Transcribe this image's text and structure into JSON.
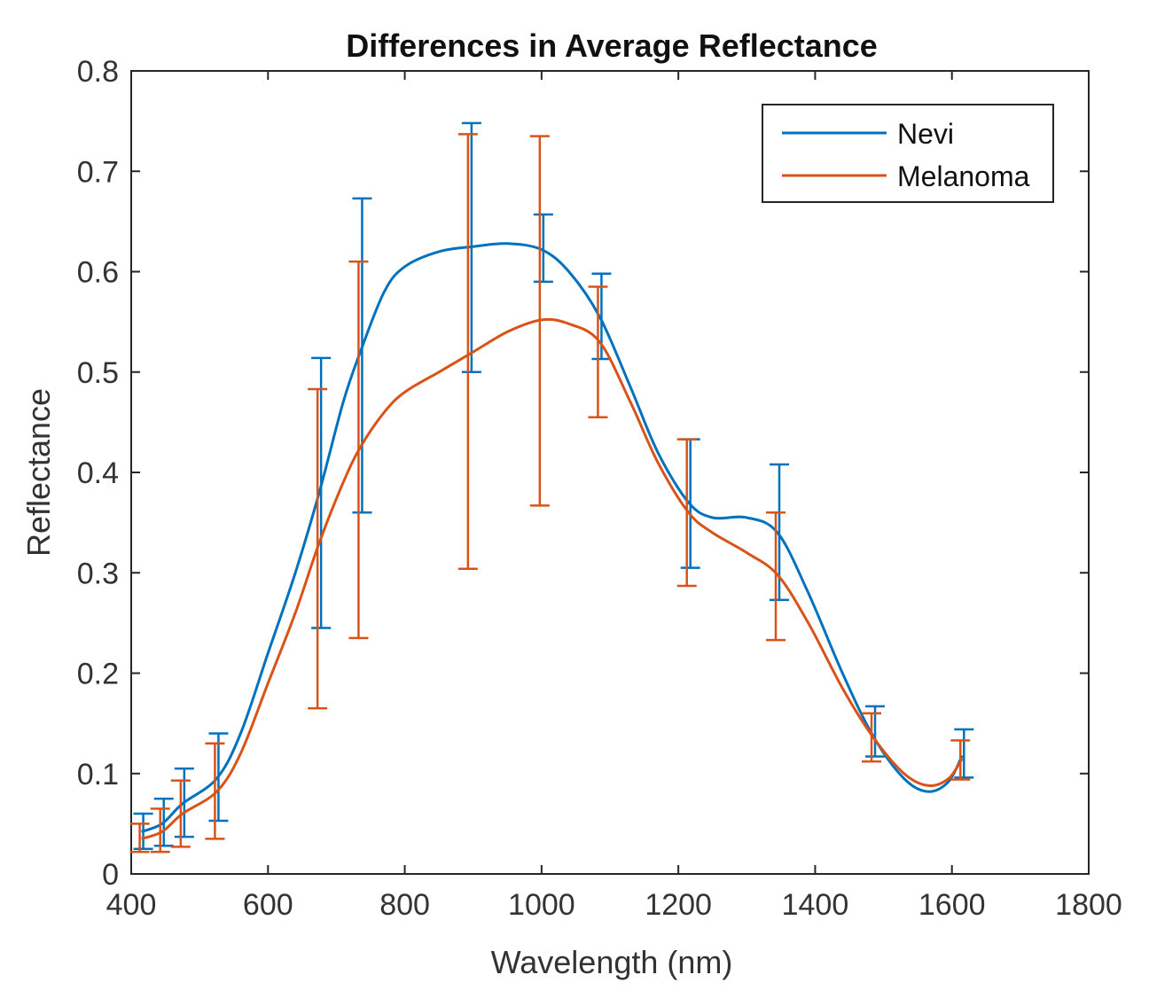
{
  "chart_data": {
    "type": "line",
    "title": "Differences in Average Reflectance",
    "xlabel": "Wavelength (nm)",
    "ylabel": "Reflectance",
    "xlim": [
      400,
      1800
    ],
    "ylim": [
      0,
      0.8
    ],
    "xticks": [
      400,
      600,
      800,
      1000,
      1200,
      1400,
      1600,
      1800
    ],
    "yticks": [
      0,
      0.1,
      0.2,
      0.3,
      0.4,
      0.5,
      0.6,
      0.7,
      0.8
    ],
    "ytick_labels": [
      "0",
      "0.1",
      "0.2",
      "0.3",
      "0.4",
      "0.5",
      "0.6",
      "0.7",
      "0.8"
    ],
    "grid": false,
    "legend_position": "top-right",
    "series": [
      {
        "name": "Nevi",
        "color": "#0072BD",
        "curve": {
          "x": [
            415,
            445,
            475,
            525,
            560,
            600,
            640,
            675,
            710,
            735,
            770,
            800,
            850,
            900,
            950,
            1000,
            1040,
            1085,
            1130,
            1170,
            1215,
            1250,
            1300,
            1345,
            1390,
            1440,
            1485,
            1530,
            1565,
            1595,
            1615
          ],
          "y": [
            0.042,
            0.05,
            0.07,
            0.095,
            0.14,
            0.22,
            0.3,
            0.38,
            0.47,
            0.52,
            0.58,
            0.605,
            0.62,
            0.625,
            0.628,
            0.622,
            0.6,
            0.555,
            0.485,
            0.42,
            0.37,
            0.355,
            0.355,
            0.34,
            0.28,
            0.2,
            0.137,
            0.095,
            0.082,
            0.092,
            0.118
          ]
        },
        "errorbars": {
          "x": [
            415,
            445,
            475,
            525,
            675,
            735,
            895,
            1000,
            1085,
            1215,
            1345,
            1485,
            1615
          ],
          "lower": [
            0.025,
            0.028,
            0.037,
            0.053,
            0.245,
            0.36,
            0.5,
            0.59,
            0.513,
            0.305,
            0.273,
            0.117,
            0.096
          ],
          "upper": [
            0.06,
            0.075,
            0.105,
            0.14,
            0.514,
            0.673,
            0.748,
            0.657,
            0.598,
            0.433,
            0.408,
            0.167,
            0.144
          ]
        }
      },
      {
        "name": "Melanoma",
        "color": "#D95319",
        "curve": {
          "x": [
            415,
            445,
            475,
            525,
            560,
            600,
            640,
            675,
            710,
            735,
            770,
            800,
            850,
            900,
            950,
            1000,
            1040,
            1085,
            1130,
            1170,
            1215,
            1250,
            1300,
            1345,
            1390,
            1440,
            1485,
            1530,
            1565,
            1595,
            1615
          ],
          "y": [
            0.035,
            0.042,
            0.06,
            0.082,
            0.12,
            0.19,
            0.26,
            0.33,
            0.39,
            0.425,
            0.46,
            0.48,
            0.5,
            0.52,
            0.54,
            0.552,
            0.548,
            0.53,
            0.47,
            0.41,
            0.36,
            0.34,
            0.32,
            0.298,
            0.25,
            0.185,
            0.136,
            0.1,
            0.088,
            0.095,
            0.115
          ]
        },
        "errorbars": {
          "x": [
            415,
            445,
            475,
            525,
            675,
            735,
            895,
            1000,
            1085,
            1215,
            1345,
            1485,
            1615
          ],
          "lower": [
            0.022,
            0.022,
            0.027,
            0.035,
            0.165,
            0.235,
            0.304,
            0.367,
            0.455,
            0.287,
            0.233,
            0.112,
            0.094
          ],
          "upper": [
            0.05,
            0.065,
            0.093,
            0.13,
            0.483,
            0.61,
            0.737,
            0.735,
            0.585,
            0.433,
            0.36,
            0.16,
            0.133
          ]
        }
      }
    ]
  }
}
